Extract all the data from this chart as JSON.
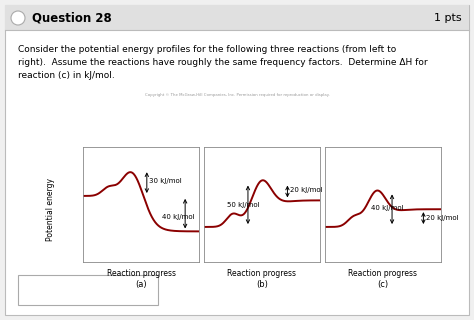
{
  "title": "Question 28",
  "pts": "1 pts",
  "question_text_line1": "Consider the potential energy profiles for the following three reactions (from left to",
  "question_text_line2": "right).  Assume the reactions have roughly the same frequency factors.  Determine ΔH for",
  "question_text_line3": "reaction (c) in kJ/mol.",
  "bg_color": "#f0f0f0",
  "white": "#ffffff",
  "header_color": "#e0e0e0",
  "curve_color": "#8b0000",
  "label_a": "(a)",
  "label_b": "(b)",
  "label_c": "(c)",
  "xlabel": "Reaction progress",
  "ylabel": "Potential energy",
  "ann_a": [
    "30 kJ/mol",
    "40 kJ/mol"
  ],
  "ann_b": [
    "20 kJ/mol",
    "50 kJ/mol"
  ],
  "ann_c": [
    "40 kJ/mol",
    "20 kJ/mol"
  ],
  "copyright_text": "Copyright © The McGraw-Hill Companies, Inc. Permission required for reproduction or display."
}
